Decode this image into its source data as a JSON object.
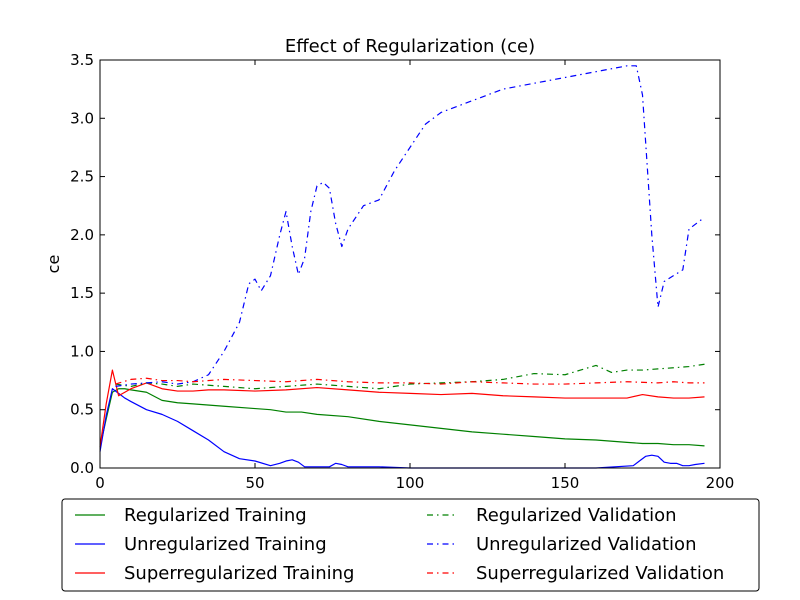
{
  "chart_data": {
    "type": "line",
    "title": "Effect of Regularization (ce)",
    "xlabel": "",
    "ylabel": "ce",
    "xlim": [
      0,
      200
    ],
    "ylim": [
      0,
      3.5
    ],
    "xticks": [
      0,
      50,
      100,
      150,
      200
    ],
    "xtick_labels": [
      "0",
      "50",
      "100",
      "150",
      "200"
    ],
    "yticks": [
      0,
      0.5,
      1.0,
      1.5,
      2.0,
      2.5,
      3.0,
      3.5
    ],
    "ytick_labels": [
      "0.0",
      "0.5",
      "1.0",
      "1.5",
      "2.0",
      "2.5",
      "3.0",
      "3.5"
    ],
    "grid": false,
    "legend_position": "below-plot",
    "series": [
      {
        "name": "Regularized Training",
        "color": "#008000",
        "style": "solid",
        "x": [
          0,
          2,
          4,
          6,
          8,
          10,
          15,
          20,
          25,
          30,
          40,
          50,
          55,
          60,
          65,
          70,
          80,
          90,
          100,
          110,
          120,
          130,
          140,
          150,
          160,
          170,
          175,
          180,
          185,
          190,
          195
        ],
        "y": [
          0.18,
          0.42,
          0.65,
          0.68,
          0.68,
          0.67,
          0.65,
          0.58,
          0.56,
          0.55,
          0.53,
          0.51,
          0.5,
          0.48,
          0.48,
          0.46,
          0.44,
          0.4,
          0.37,
          0.34,
          0.31,
          0.29,
          0.27,
          0.25,
          0.24,
          0.22,
          0.21,
          0.21,
          0.2,
          0.2,
          0.19
        ]
      },
      {
        "name": "Unregularized Training",
        "color": "#0000ff",
        "style": "solid",
        "x": [
          0,
          2,
          4,
          6,
          8,
          10,
          15,
          20,
          25,
          30,
          35,
          40,
          45,
          50,
          55,
          58,
          60,
          62,
          64,
          66,
          70,
          74,
          76,
          78,
          80,
          90,
          100,
          120,
          140,
          160,
          172,
          174,
          176,
          178,
          180,
          182,
          184,
          186,
          188,
          190,
          192,
          195
        ],
        "y": [
          0.14,
          0.45,
          0.68,
          0.64,
          0.6,
          0.57,
          0.5,
          0.46,
          0.4,
          0.32,
          0.24,
          0.14,
          0.08,
          0.06,
          0.02,
          0.04,
          0.06,
          0.07,
          0.05,
          0.01,
          0.01,
          0.01,
          0.04,
          0.03,
          0.01,
          0.01,
          0.0,
          0.0,
          0.0,
          0.0,
          0.02,
          0.06,
          0.1,
          0.11,
          0.1,
          0.05,
          0.04,
          0.04,
          0.02,
          0.02,
          0.03,
          0.04
        ]
      },
      {
        "name": "Superregularized Training",
        "color": "#ff0000",
        "style": "solid",
        "x": [
          0,
          2,
          4,
          6,
          8,
          10,
          15,
          20,
          25,
          30,
          35,
          40,
          50,
          60,
          70,
          80,
          90,
          100,
          110,
          120,
          130,
          140,
          150,
          160,
          170,
          175,
          180,
          185,
          190,
          195
        ],
        "y": [
          0.18,
          0.55,
          0.84,
          0.62,
          0.65,
          0.68,
          0.73,
          0.68,
          0.66,
          0.66,
          0.67,
          0.67,
          0.66,
          0.67,
          0.69,
          0.67,
          0.65,
          0.64,
          0.63,
          0.64,
          0.62,
          0.61,
          0.6,
          0.6,
          0.6,
          0.63,
          0.61,
          0.6,
          0.6,
          0.61
        ]
      },
      {
        "name": "Regularized Validation",
        "color": "#008000",
        "style": "dashdot",
        "x": [
          5,
          10,
          15,
          20,
          25,
          30,
          40,
          50,
          60,
          70,
          80,
          90,
          100,
          110,
          120,
          130,
          140,
          150,
          155,
          160,
          165,
          170,
          175,
          180,
          185,
          190,
          195
        ],
        "y": [
          0.72,
          0.7,
          0.73,
          0.72,
          0.7,
          0.72,
          0.7,
          0.68,
          0.7,
          0.72,
          0.7,
          0.68,
          0.72,
          0.73,
          0.74,
          0.76,
          0.81,
          0.8,
          0.84,
          0.88,
          0.82,
          0.84,
          0.84,
          0.85,
          0.86,
          0.87,
          0.89
        ]
      },
      {
        "name": "Unregularized Validation",
        "color": "#0000ff",
        "style": "dashdot",
        "x": [
          5,
          10,
          15,
          20,
          25,
          30,
          35,
          40,
          45,
          48,
          50,
          52,
          55,
          58,
          60,
          62,
          64,
          66,
          68,
          70,
          72,
          74,
          76,
          78,
          80,
          85,
          90,
          95,
          100,
          105,
          110,
          120,
          130,
          140,
          150,
          160,
          170,
          173,
          175,
          178,
          180,
          182,
          185,
          188,
          190,
          195
        ],
        "y": [
          0.7,
          0.72,
          0.73,
          0.74,
          0.72,
          0.74,
          0.8,
          1.0,
          1.25,
          1.58,
          1.62,
          1.52,
          1.65,
          2.0,
          2.2,
          1.9,
          1.66,
          1.8,
          2.2,
          2.42,
          2.45,
          2.4,
          2.1,
          1.9,
          2.05,
          2.25,
          2.3,
          2.55,
          2.75,
          2.95,
          3.05,
          3.15,
          3.25,
          3.3,
          3.35,
          3.4,
          3.45,
          3.45,
          3.2,
          2.0,
          1.38,
          1.6,
          1.65,
          1.7,
          2.05,
          2.15
        ]
      },
      {
        "name": "Superregularized Validation",
        "color": "#ff0000",
        "style": "dashdot",
        "x": [
          5,
          10,
          15,
          20,
          25,
          30,
          40,
          50,
          60,
          70,
          80,
          90,
          100,
          110,
          120,
          130,
          140,
          150,
          160,
          170,
          180,
          185,
          190,
          195
        ],
        "y": [
          0.72,
          0.76,
          0.77,
          0.75,
          0.75,
          0.74,
          0.76,
          0.75,
          0.74,
          0.76,
          0.74,
          0.73,
          0.73,
          0.72,
          0.74,
          0.73,
          0.72,
          0.72,
          0.73,
          0.74,
          0.73,
          0.74,
          0.73,
          0.73
        ]
      }
    ]
  }
}
